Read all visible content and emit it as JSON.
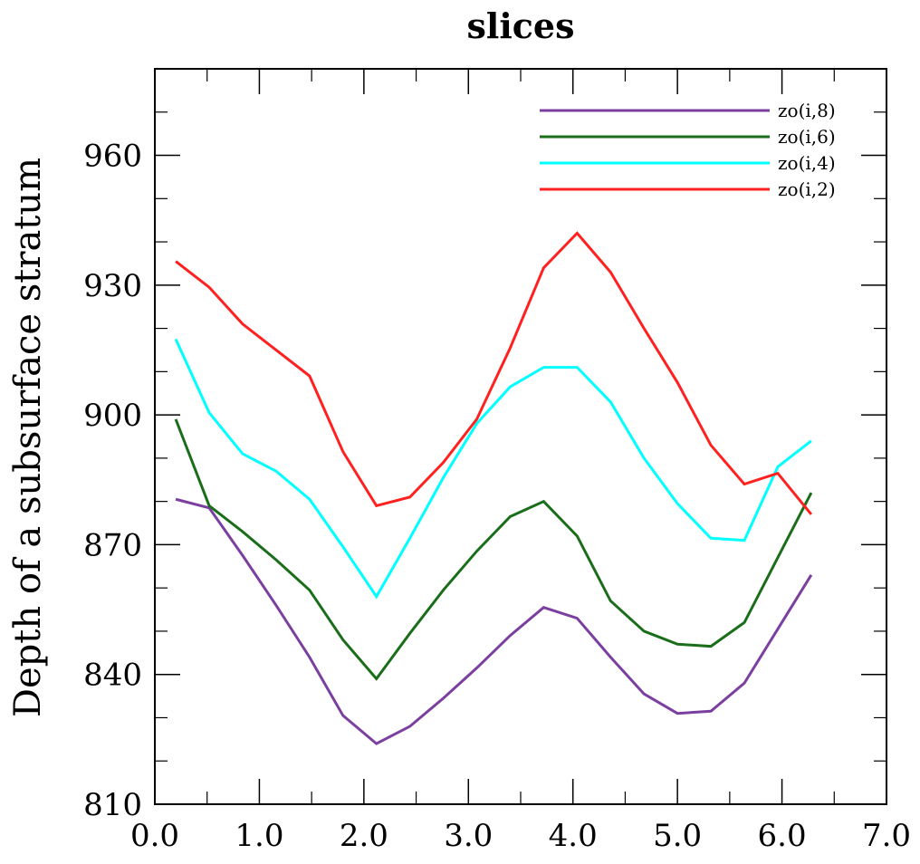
{
  "chart_data": {
    "type": "line",
    "title": "slices",
    "xlabel": "",
    "ylabel": "Depth of a subsurface stratum",
    "xlim": [
      0.0,
      7.0
    ],
    "ylim": [
      810,
      980
    ],
    "xticks": [
      "0.0",
      "1.0",
      "2.0",
      "3.0",
      "4.0",
      "5.0",
      "6.0",
      "7.0"
    ],
    "yticks": [
      "810",
      "840",
      "870",
      "900",
      "930",
      "960"
    ],
    "grid": false,
    "legend_position": "top-right",
    "x": [
      0.2,
      0.52,
      0.84,
      1.16,
      1.48,
      1.8,
      2.12,
      2.44,
      2.76,
      3.08,
      3.4,
      3.72,
      4.04,
      4.36,
      4.68,
      5.0,
      5.32,
      5.64,
      5.96,
      6.28
    ],
    "series": [
      {
        "name": "zo(i,8)",
        "color": "#7b3fa0",
        "values": [
          880.5,
          878.5,
          867.5,
          856,
          844,
          830.5,
          824,
          828,
          834.5,
          841.5,
          849,
          855.5,
          853,
          844,
          835.5,
          831,
          831.5,
          838,
          850.5,
          863
        ]
      },
      {
        "name": "zo(i,6)",
        "color": "#1a6e1a",
        "values": [
          899,
          879,
          873,
          866.5,
          859.5,
          848,
          839,
          849.5,
          859.5,
          868.5,
          876.5,
          880,
          872,
          857,
          850,
          847,
          846.5,
          852,
          867,
          882
        ]
      },
      {
        "name": "zo(i,4)",
        "color": "#00ffff",
        "values": [
          917.5,
          900.5,
          891,
          887,
          880.5,
          869.5,
          858,
          871.5,
          885.5,
          898,
          906.5,
          911,
          911,
          903,
          890,
          879.5,
          871.5,
          871,
          888,
          894
        ]
      },
      {
        "name": "zo(i,2)",
        "color": "#ff2020",
        "values": [
          935.5,
          929.5,
          921,
          915,
          909,
          891.5,
          879,
          881,
          889,
          899,
          915.5,
          934,
          942,
          933,
          920,
          907.5,
          893,
          884,
          886.5,
          877
        ]
      }
    ]
  }
}
